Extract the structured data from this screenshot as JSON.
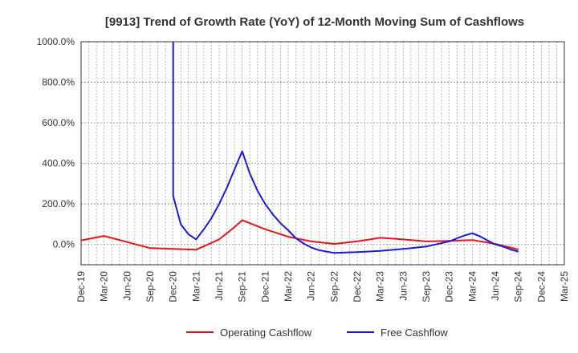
{
  "chart_data": {
    "type": "line",
    "title": "[9913]  Trend of Growth Rate (YoY) of 12-Month Moving Sum of Cashflows",
    "xlabel": "",
    "ylabel": "",
    "ylim": [
      -100,
      1000
    ],
    "y_ticks": [
      "1000.0%",
      "800.0%",
      "600.0%",
      "400.0%",
      "200.0%",
      "0.0%"
    ],
    "y_tick_values": [
      1000,
      800,
      600,
      400,
      200,
      0
    ],
    "x_ticks": [
      "Dec-19",
      "Mar-20",
      "Jun-20",
      "Sep-20",
      "Dec-20",
      "Mar-21",
      "Jun-21",
      "Sep-21",
      "Dec-21",
      "Mar-22",
      "Jun-22",
      "Sep-22",
      "Dec-22",
      "Mar-23",
      "Jun-23",
      "Sep-23",
      "Dec-23",
      "Mar-24",
      "Jun-24",
      "Sep-24",
      "Dec-24",
      "Mar-25"
    ],
    "grid": true,
    "legend_position": "bottom",
    "series": [
      {
        "name": "Operating Cashflow",
        "color": "#e8141b",
        "values": [
          20,
          30,
          42,
          28,
          12,
          -2,
          -18,
          -20,
          -22,
          -24,
          -26,
          -5,
          25,
          60,
          120,
          95,
          75,
          55,
          38,
          20,
          10,
          3,
          10,
          20,
          33,
          28,
          22,
          18,
          15,
          18,
          20,
          22,
          5,
          -5,
          -20
        ]
      },
      {
        "name": "Free Cashflow",
        "color": "#1a1adc",
        "values": [
          null,
          null,
          null,
          null,
          null,
          null,
          null,
          null,
          null,
          null,
          null,
          null,
          null,
          null,
          null,
          null,
          null,
          null,
          null,
          null,
          null,
          null,
          null,
          null,
          null,
          null,
          null,
          null,
          null,
          null,
          null,
          null,
          null,
          null,
          null
        ]
      }
    ],
    "free_cashflow_points": [
      {
        "x": "Dec-20",
        "y": 1100
      },
      {
        "x": "Dec-20",
        "y": 240
      },
      {
        "x": "Jan-21",
        "y": 100
      },
      {
        "x": "Feb-21",
        "y": 50
      },
      {
        "x": "Mar-21",
        "y": 25
      },
      {
        "x": "Apr-21",
        "y": 75
      },
      {
        "x": "May-21",
        "y": 130
      },
      {
        "x": "Jun-21",
        "y": 200
      },
      {
        "x": "Jul-21",
        "y": 280
      },
      {
        "x": "Aug-21",
        "y": 370
      },
      {
        "x": "Sep-21",
        "y": 460
      },
      {
        "x": "Oct-21",
        "y": 350
      },
      {
        "x": "Nov-21",
        "y": 265
      },
      {
        "x": "Dec-21",
        "y": 200
      },
      {
        "x": "Jan-22",
        "y": 148
      },
      {
        "x": "Feb-22",
        "y": 105
      },
      {
        "x": "Mar-22",
        "y": 70
      },
      {
        "x": "Apr-22",
        "y": 30
      },
      {
        "x": "May-22",
        "y": 5
      },
      {
        "x": "Jun-22",
        "y": -15
      },
      {
        "x": "Jul-22",
        "y": -28
      },
      {
        "x": "Aug-22",
        "y": -35
      },
      {
        "x": "Sep-22",
        "y": -42
      },
      {
        "x": "Dec-22",
        "y": -38
      },
      {
        "x": "Mar-23",
        "y": -32
      },
      {
        "x": "Jun-23",
        "y": -22
      },
      {
        "x": "Sep-23",
        "y": -10
      },
      {
        "x": "Dec-23",
        "y": 15
      },
      {
        "x": "Jan-24",
        "y": 30
      },
      {
        "x": "Feb-24",
        "y": 45
      },
      {
        "x": "Mar-24",
        "y": 55
      },
      {
        "x": "Apr-24",
        "y": 40
      },
      {
        "x": "May-24",
        "y": 20
      },
      {
        "x": "Jun-24",
        "y": 0
      },
      {
        "x": "Jul-24",
        "y": -10
      },
      {
        "x": "Aug-24",
        "y": -25
      },
      {
        "x": "Sep-24",
        "y": -35
      }
    ],
    "operating_cashflow_points": [
      {
        "x": "Dec-19",
        "y": 20
      },
      {
        "x": "Mar-20",
        "y": 42
      },
      {
        "x": "Jun-20",
        "y": 12
      },
      {
        "x": "Sep-20",
        "y": -18
      },
      {
        "x": "Dec-20",
        "y": -22
      },
      {
        "x": "Mar-21",
        "y": -26
      },
      {
        "x": "Jun-21",
        "y": 25
      },
      {
        "x": "Aug-21",
        "y": 85
      },
      {
        "x": "Sep-21",
        "y": 120
      },
      {
        "x": "Dec-21",
        "y": 75
      },
      {
        "x": "Mar-22",
        "y": 38
      },
      {
        "x": "Jun-22",
        "y": 15
      },
      {
        "x": "Sep-22",
        "y": 3
      },
      {
        "x": "Dec-22",
        "y": 15
      },
      {
        "x": "Mar-23",
        "y": 33
      },
      {
        "x": "Jun-23",
        "y": 25
      },
      {
        "x": "Sep-23",
        "y": 15
      },
      {
        "x": "Dec-23",
        "y": 18
      },
      {
        "x": "Mar-24",
        "y": 22
      },
      {
        "x": "Jun-24",
        "y": 3
      },
      {
        "x": "Sep-24",
        "y": -25
      }
    ]
  }
}
